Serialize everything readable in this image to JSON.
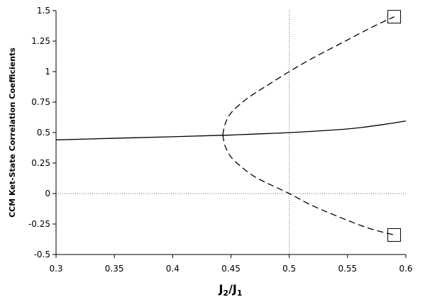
{
  "chart_data": {
    "type": "line",
    "xlabel": {
      "base1": "J",
      "sub1": "2",
      "sep": "/",
      "base2": "J",
      "sub2": "1"
    },
    "ylabel": "CCM Ket-State Correlation Coefficients",
    "xlim": [
      0.3,
      0.6
    ],
    "ylim": [
      -0.5,
      1.5
    ],
    "x_ticks": [
      "0.3",
      "0.35",
      "0.4",
      "0.45",
      "0.5",
      "0.55",
      "0.6"
    ],
    "y_ticks": [
      "-0.5",
      "-0.25",
      "0",
      "0.25",
      "0.5",
      "0.75",
      "1",
      "1.25",
      "1.5"
    ],
    "grid": false,
    "reference_lines": [
      {
        "orientation": "vertical",
        "value": 0.5,
        "style": "dotted"
      },
      {
        "orientation": "horizontal",
        "value": 0.0,
        "style": "dotted"
      }
    ],
    "series": [
      {
        "style": "solid",
        "x": [
          0.3,
          0.35,
          0.4,
          0.44,
          0.45,
          0.5,
          0.55,
          0.58,
          0.6
        ],
        "y": [
          0.44,
          0.453,
          0.466,
          0.477,
          0.48,
          0.5,
          0.53,
          0.565,
          0.595
        ]
      },
      {
        "style": "dashed",
        "x": [
          0.443,
          0.445,
          0.45,
          0.46,
          0.47,
          0.48,
          0.5,
          0.52,
          0.55,
          0.57,
          0.59
        ],
        "y": [
          0.48,
          0.57,
          0.66,
          0.75,
          0.82,
          0.88,
          1.0,
          1.11,
          1.26,
          1.36,
          1.45
        ]
      },
      {
        "style": "dashed",
        "x": [
          0.443,
          0.445,
          0.45,
          0.46,
          0.47,
          0.48,
          0.5,
          0.52,
          0.55,
          0.57,
          0.59
        ],
        "y": [
          0.48,
          0.39,
          0.3,
          0.21,
          0.14,
          0.09,
          0.0,
          -0.1,
          -0.22,
          -0.29,
          -0.34
        ]
      }
    ],
    "markers": [
      {
        "shape": "square",
        "x": 0.59,
        "y": 1.45
      },
      {
        "shape": "square",
        "x": 0.59,
        "y": -0.34
      }
    ]
  }
}
